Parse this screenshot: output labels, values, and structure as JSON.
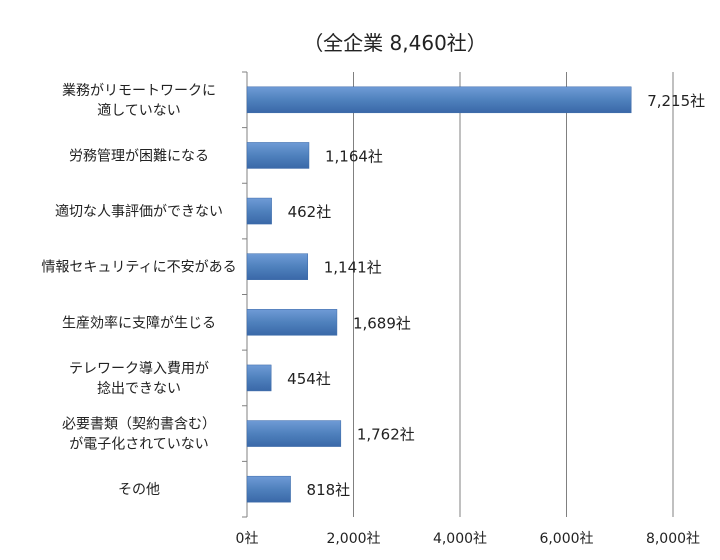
{
  "chart_data": {
    "type": "bar",
    "orientation": "horizontal",
    "title": "（全企業 8,460社）",
    "categories": [
      "業務がリモートワークに\n適していない",
      "労務管理が困難になる",
      "適切な人事評価ができない",
      "情報セキュリティに不安がある",
      "生産効率に支障が生じる",
      "テレワーク導入費用が\n捻出できない",
      "必要書類（契約書含む）\nが電子化されていない",
      "その他"
    ],
    "values": [
      7215,
      1164,
      462,
      1141,
      1689,
      454,
      1762,
      818
    ],
    "value_labels": [
      "7,215社",
      "1,164社",
      "462社",
      "1,141社",
      "1,689社",
      "454社",
      "1,762社",
      "818社"
    ],
    "xlim": [
      0,
      8000
    ],
    "x_ticks": [
      0,
      2000,
      4000,
      6000,
      8000
    ],
    "x_tick_labels": [
      "0社",
      "2,000社",
      "4,000社",
      "6,000社",
      "8,000社"
    ],
    "grid": true,
    "legend": "none",
    "bar_color": "#4F81BD",
    "bar_color_light": "#6F9BD6",
    "bar_color_dark": "#3A68A8"
  }
}
